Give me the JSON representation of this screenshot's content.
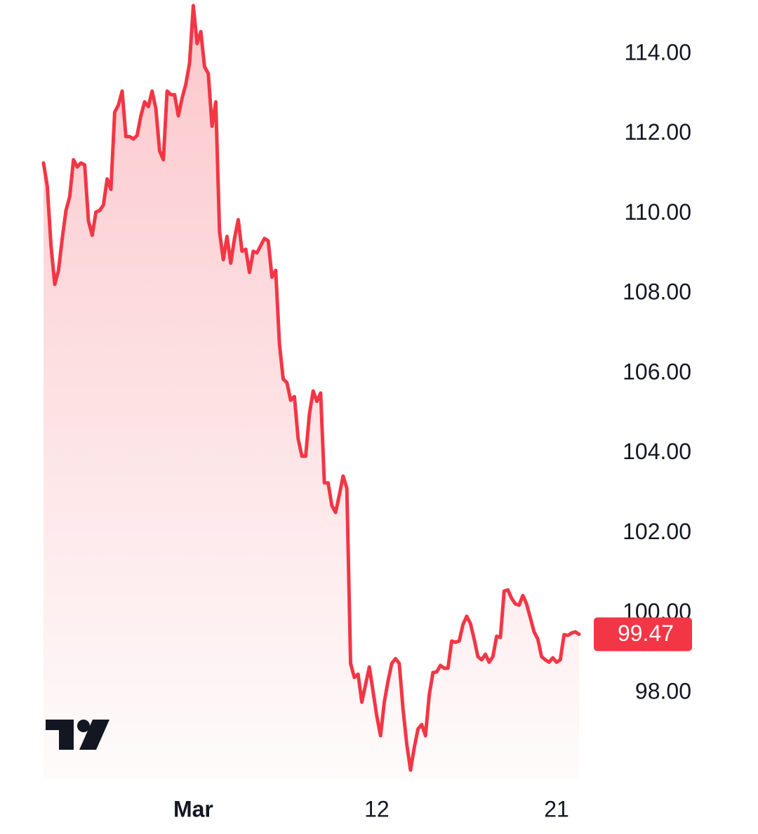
{
  "chart_data": {
    "type": "area",
    "color": "#f23645",
    "categories": [
      null,
      null,
      null,
      null,
      null,
      null,
      null,
      null,
      null,
      null,
      null,
      null,
      null,
      null,
      null,
      null,
      null,
      null,
      null,
      null,
      null,
      null,
      null,
      null,
      null,
      null,
      null,
      null,
      null,
      null,
      null,
      null,
      null,
      null,
      null,
      null,
      null,
      null,
      null,
      null,
      "Mar",
      null,
      null,
      null,
      null,
      null,
      null,
      null,
      null,
      null,
      null,
      null,
      null,
      null,
      null,
      null,
      null,
      null,
      null,
      null,
      null,
      null,
      null,
      null,
      null,
      null,
      null,
      null,
      null,
      null,
      null,
      null,
      null,
      null,
      null,
      null,
      null,
      null,
      null,
      null,
      null,
      null,
      null,
      null,
      null,
      null,
      null,
      null,
      null,
      "12",
      null,
      null,
      null,
      null,
      null,
      null,
      null,
      null,
      null,
      null,
      null,
      null,
      null,
      null,
      null,
      null,
      null,
      null,
      null,
      null,
      null,
      null,
      null,
      null,
      null,
      null,
      null,
      null,
      null,
      null,
      null,
      null,
      null,
      null,
      null,
      null,
      null,
      null,
      null,
      null,
      null,
      null,
      null,
      null,
      null,
      null,
      null,
      "21",
      null,
      null,
      null,
      null,
      null,
      null
    ],
    "values": [
      111.27,
      110.69,
      109.2,
      108.23,
      108.58,
      109.38,
      110.08,
      110.43,
      111.35,
      111.17,
      111.27,
      111.22,
      109.82,
      109.46,
      110.04,
      110.08,
      110.22,
      110.87,
      110.61,
      112.54,
      112.72,
      113.07,
      111.93,
      111.93,
      111.87,
      111.96,
      112.45,
      112.8,
      112.68,
      113.07,
      112.63,
      111.57,
      111.35,
      113.07,
      112.98,
      112.98,
      112.45,
      112.89,
      113.24,
      113.77,
      115.21,
      114.26,
      114.56,
      113.68,
      113.51,
      112.19,
      112.8,
      109.55,
      108.85,
      109.43,
      108.76,
      109.38,
      109.85,
      109.06,
      109.11,
      108.53,
      109.06,
      109.02,
      109.2,
      109.38,
      109.32,
      108.41,
      108.58,
      106.74,
      105.86,
      105.77,
      105.33,
      105.42,
      104.36,
      103.93,
      103.93,
      104.98,
      105.56,
      105.3,
      105.51,
      103.26,
      103.26,
      102.69,
      102.52,
      102.96,
      103.43,
      103.13,
      98.74,
      98.39,
      98.47,
      97.77,
      98.21,
      98.65,
      98.04,
      97.42,
      96.93,
      97.77,
      98.3,
      98.74,
      98.86,
      98.74,
      97.6,
      96.72,
      96.07,
      96.63,
      97.1,
      97.21,
      96.93,
      97.95,
      98.51,
      98.53,
      98.69,
      98.62,
      98.62,
      99.3,
      99.27,
      99.3,
      99.71,
      99.92,
      99.74,
      99.35,
      98.91,
      98.83,
      98.97,
      98.77,
      98.91,
      99.42,
      99.39,
      100.55,
      100.58,
      100.37,
      100.23,
      100.2,
      100.44,
      100.23,
      99.88,
      99.53,
      99.35,
      98.91,
      98.83,
      98.77,
      98.88,
      98.77,
      98.83,
      99.46,
      99.44,
      99.5,
      99.53,
      99.47
    ],
    "current_value": 99.47,
    "ylim": [
      95.84,
      115.35
    ],
    "yticks": [
      {
        "value": 98,
        "label": "98.00"
      },
      {
        "value": 100,
        "label": "100.00"
      },
      {
        "value": 102,
        "label": "102.00"
      },
      {
        "value": 104,
        "label": "104.00"
      },
      {
        "value": 106,
        "label": "106.00"
      },
      {
        "value": 108,
        "label": "108.00"
      },
      {
        "value": 110,
        "label": "110.00"
      },
      {
        "value": 112,
        "label": "112.00"
      },
      {
        "value": 114,
        "label": "114.00"
      }
    ],
    "grid": false
  }
}
